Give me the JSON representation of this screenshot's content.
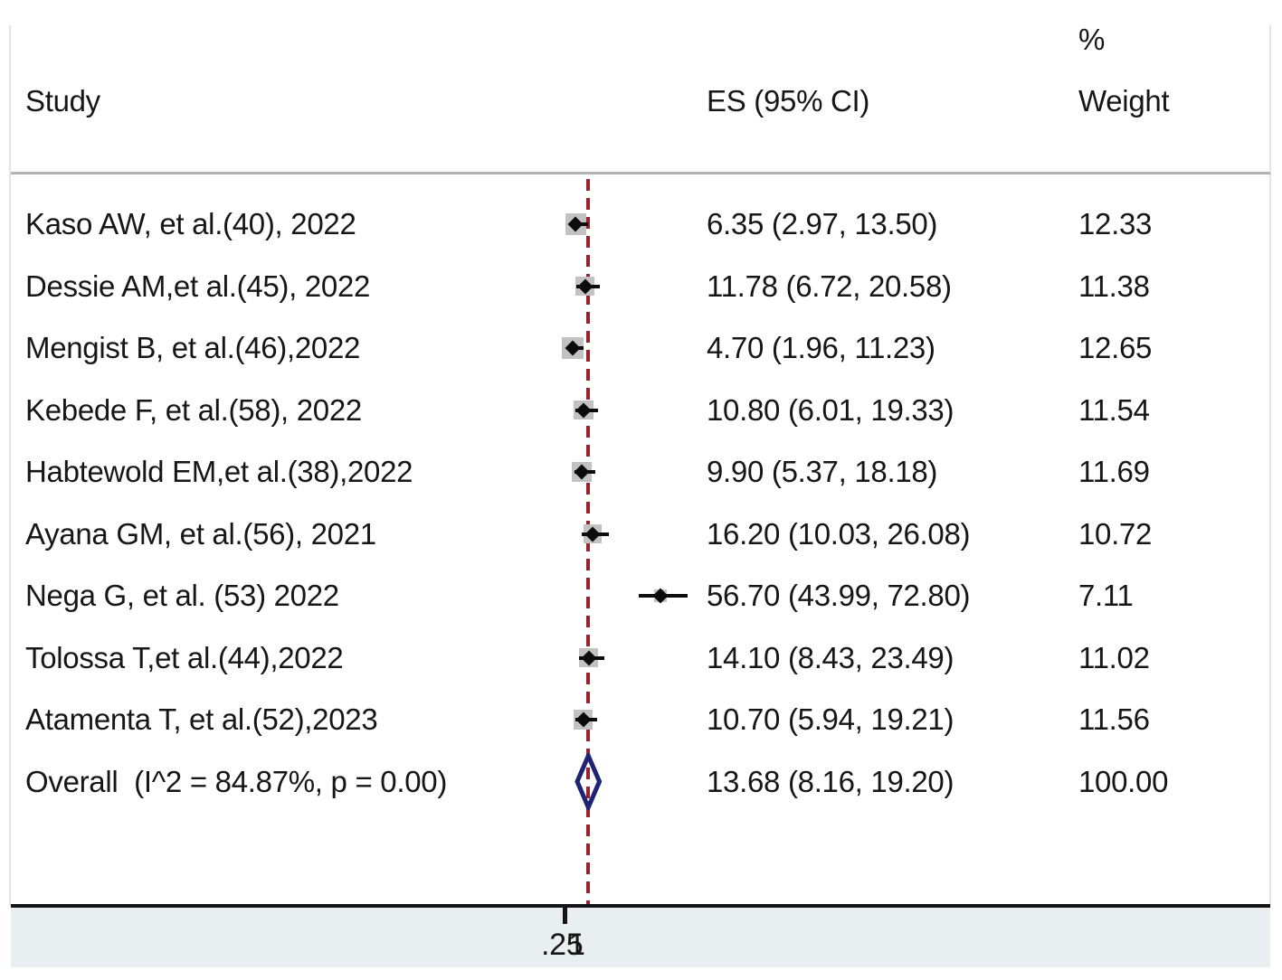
{
  "header": {
    "study_col": "Study",
    "es_col": "ES (95% CI)",
    "pct_col": "%",
    "weight_col": "Weight"
  },
  "chart_data": {
    "type": "forest",
    "title": "",
    "columns": [
      "Study",
      "ES (95% CI)",
      "% Weight"
    ],
    "studies": [
      {
        "label": "Kaso AW, et al.(40), 2022",
        "es": 6.35,
        "ci_low": 2.97,
        "ci_high": 13.5,
        "es_text": "6.35 (2.97, 13.50)",
        "weight": 12.33,
        "weight_text": "12.33"
      },
      {
        "label": "Dessie AM,et al.(45), 2022",
        "es": 11.78,
        "ci_low": 6.72,
        "ci_high": 20.58,
        "es_text": "11.78 (6.72, 20.58)",
        "weight": 11.38,
        "weight_text": "11.38"
      },
      {
        "label": "Mengist B, et al.(46),2022",
        "es": 4.7,
        "ci_low": 1.96,
        "ci_high": 11.23,
        "es_text": "4.70 (1.96, 11.23)",
        "weight": 12.65,
        "weight_text": "12.65"
      },
      {
        "label": "Kebede F, et al.(58), 2022",
        "es": 10.8,
        "ci_low": 6.01,
        "ci_high": 19.33,
        "es_text": "10.80 (6.01, 19.33)",
        "weight": 11.54,
        "weight_text": "11.54"
      },
      {
        "label": "Habtewold EM,et al.(38),2022",
        "es": 9.9,
        "ci_low": 5.37,
        "ci_high": 18.18,
        "es_text": "9.90 (5.37, 18.18)",
        "weight": 11.69,
        "weight_text": "11.69"
      },
      {
        "label": "Ayana GM, et al.(56), 2021",
        "es": 16.2,
        "ci_low": 10.03,
        "ci_high": 26.08,
        "es_text": "16.20 (10.03, 26.08)",
        "weight": 10.72,
        "weight_text": "10.72"
      },
      {
        "label": "Nega G, et al. (53) 2022",
        "es": 56.7,
        "ci_low": 43.99,
        "ci_high": 72.8,
        "es_text": "56.70 (43.99, 72.80)",
        "weight": 7.11,
        "weight_text": "7.11"
      },
      {
        "label": "Tolossa T,et al.(44),2022",
        "es": 14.1,
        "ci_low": 8.43,
        "ci_high": 23.49,
        "es_text": "14.10 (8.43, 23.49)",
        "weight": 11.02,
        "weight_text": "11.02"
      },
      {
        "label": "Atamenta T, et al.(52),2023",
        "es": 10.7,
        "ci_low": 5.94,
        "ci_high": 19.21,
        "es_text": "10.70 (5.94, 19.21)",
        "weight": 11.56,
        "weight_text": "11.56"
      }
    ],
    "overall": {
      "label": "Overall  (I^2 = 84.87%, p = 0.00)",
      "es": 13.68,
      "ci_low": 8.16,
      "ci_high": 19.2,
      "es_text": "13.68 (8.16, 19.20)",
      "weight": 100.0,
      "weight_text": "100.00"
    },
    "x_axis": {
      "tick_labels": [
        ".25",
        "1"
      ],
      "reference_line": "overall estimate"
    },
    "legend_position": "none",
    "grid": false,
    "colors": {
      "reference_line": "#96232d",
      "overall_diamond": "#1e2473",
      "weight_box": "#c2c2c2",
      "marker": "#0c0c0c",
      "footer_band": "#e9eef0"
    }
  }
}
